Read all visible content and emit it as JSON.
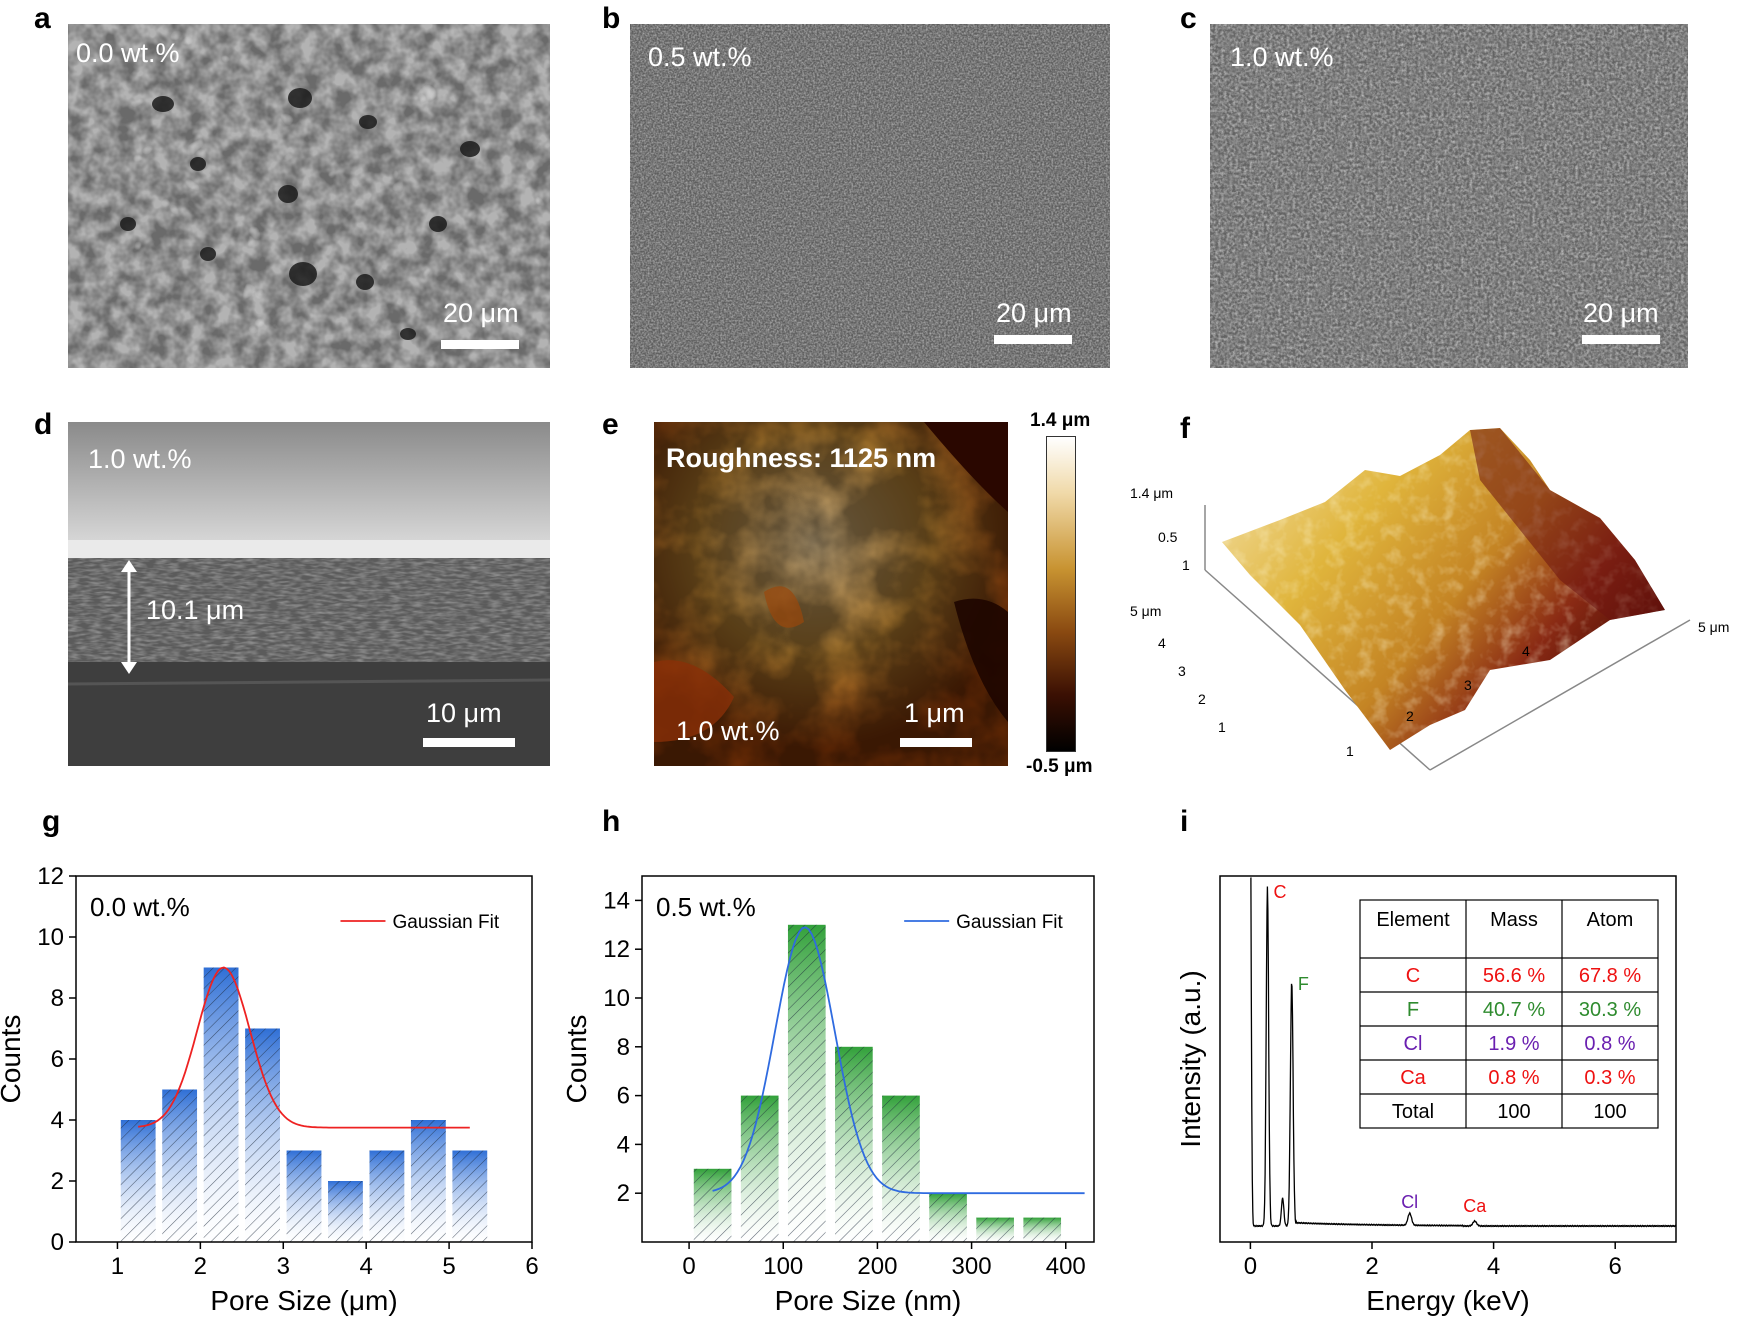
{
  "panels": {
    "a": {
      "letter": "a",
      "label": "0.0 wt.%",
      "scale": "20 μm"
    },
    "b": {
      "letter": "b",
      "label": "0.5 wt.%",
      "scale": "20 μm"
    },
    "c": {
      "letter": "c",
      "label": "1.0 wt.%",
      "scale": "20 μm"
    },
    "d": {
      "letter": "d",
      "label": "1.0 wt.%",
      "thickness": "10.1 μm",
      "scale": "10 μm"
    },
    "e": {
      "letter": "e",
      "roughness": "Roughness: 1125 nm",
      "label": "1.0 wt.%",
      "scale": "1 μm",
      "cb_max": "1.4 μm",
      "cb_min": "-0.5 μm"
    },
    "f": {
      "letter": "f",
      "z_max": "1.4 μm",
      "z_mid": "0.5",
      "z_min": "1",
      "y_max": "5 μm",
      "x_max": "5 μm",
      "y_ticks": [
        "4",
        "3",
        "2",
        "1"
      ],
      "x_ticks": [
        "1",
        "2",
        "3",
        "4"
      ]
    },
    "g": {
      "letter": "g"
    },
    "h": {
      "letter": "h"
    },
    "i": {
      "letter": "i"
    }
  },
  "colors": {
    "blue_bar": "#2f6fd6",
    "green_bar": "#32a13a",
    "red_fit": "#ee2222",
    "blue_fit": "#2f6be0",
    "C": "#ee1111",
    "F": "#2e8b2e",
    "Cl": "#6a1fb0",
    "Ca": "#ee1111"
  },
  "chart_data": [
    {
      "type": "bar",
      "panel": "g",
      "annotation": "0.0 wt.%",
      "xlabel": "Pore Size (μm)",
      "ylabel": "Counts",
      "xlim": [
        0.5,
        6
      ],
      "ylim": [
        0,
        12
      ],
      "xticks": [
        1,
        2,
        3,
        4,
        5,
        6
      ],
      "yticks": [
        0,
        2,
        4,
        6,
        8,
        10,
        12
      ],
      "bar_width": 0.42,
      "x": [
        1.25,
        1.75,
        2.25,
        2.75,
        3.25,
        3.75,
        4.25,
        4.75,
        5.25
      ],
      "values": [
        4,
        5,
        9,
        7,
        3,
        2,
        3,
        4,
        3
      ],
      "fit": {
        "name": "Gaussian Fit",
        "x0": 1.25,
        "x1": 5.25,
        "y0": 3.75,
        "A": 5.25,
        "xc": 2.28,
        "w": 0.45
      }
    },
    {
      "type": "bar",
      "panel": "h",
      "annotation": "0.5 wt.%",
      "xlabel": "Pore Size (nm)",
      "ylabel": "Counts",
      "xlim": [
        -50,
        430
      ],
      "ylim": [
        0,
        15
      ],
      "xticks": [
        0,
        100,
        200,
        300,
        400
      ],
      "yticks": [
        2,
        4,
        6,
        8,
        10,
        12,
        14
      ],
      "bar_width": 40,
      "x": [
        25,
        75,
        125,
        175,
        225,
        275,
        325,
        375
      ],
      "values": [
        3,
        6,
        13,
        8,
        6,
        2,
        1,
        1
      ],
      "fit": {
        "name": "Gaussian Fit",
        "x0": 25,
        "x1": 420,
        "y0": 2.0,
        "A": 10.9,
        "xc": 123,
        "w": 45
      }
    },
    {
      "type": "line",
      "panel": "i",
      "xlabel": "Energy (keV)",
      "ylabel": "Intensity (a.u.)",
      "xlim": [
        -0.5,
        7
      ],
      "xticks": [
        0,
        2,
        4,
        6
      ],
      "peaks": [
        {
          "label": "C",
          "x": 0.28
        },
        {
          "label": "F",
          "x": 0.68
        },
        {
          "label": "Cl",
          "x": 2.62
        },
        {
          "label": "Ca",
          "x": 3.69
        }
      ],
      "table": {
        "headers": [
          "Element",
          "Mass",
          "Atom"
        ],
        "rows": [
          [
            "C",
            "56.6 %",
            "67.8 %"
          ],
          [
            "F",
            "40.7 %",
            "30.3 %"
          ],
          [
            "Cl",
            "1.9 %",
            "0.8 %"
          ],
          [
            "Ca",
            "0.8 %",
            "0.3 %"
          ],
          [
            "Total",
            "100",
            "100"
          ]
        ]
      }
    }
  ]
}
